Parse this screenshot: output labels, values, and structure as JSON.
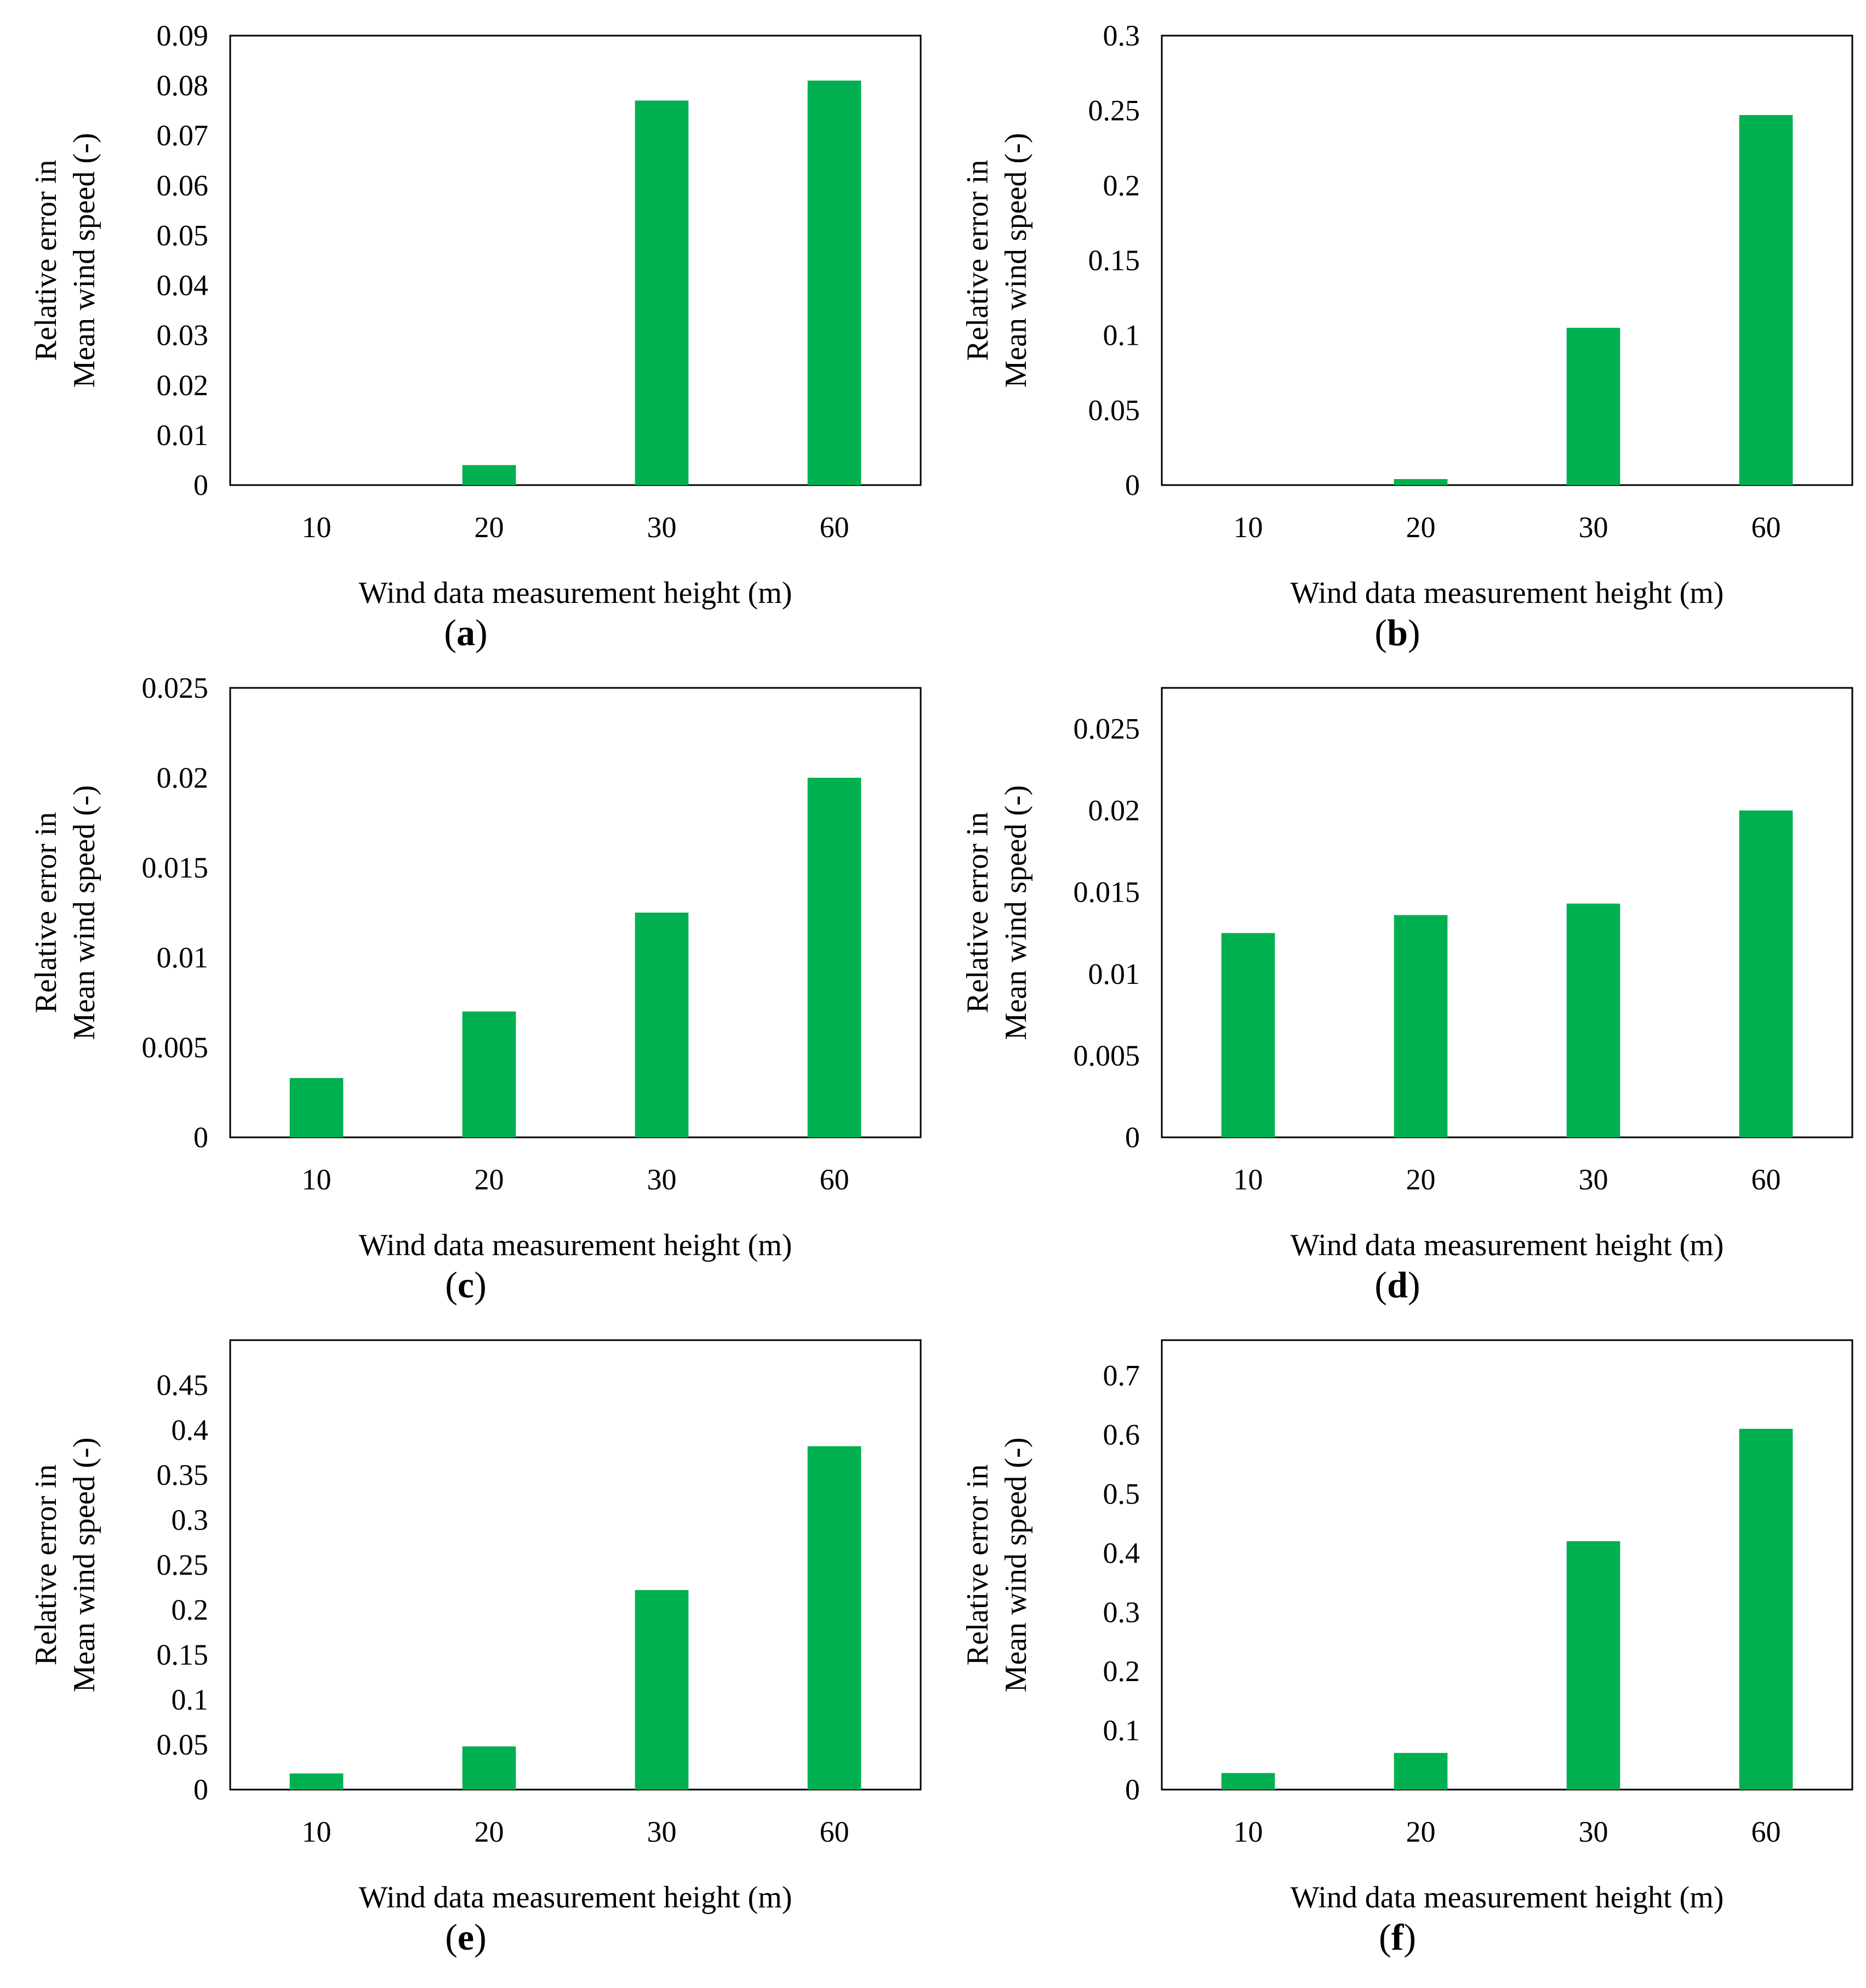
{
  "bar_color": "#00b050",
  "chart_data": [
    {
      "panel": "a",
      "type": "bar",
      "categories": [
        "10",
        "20",
        "30",
        "60"
      ],
      "values": [
        0,
        0.004,
        0.077,
        0.081
      ],
      "xlabel": "Wind data measurement height (m)",
      "ylabel_lines": [
        "Relative error in",
        "Mean wind speed (-)"
      ],
      "ylim": [
        0,
        0.09
      ],
      "yticks": [
        "0",
        "0.01",
        "0.02",
        "0.03",
        "0.04",
        "0.05",
        "0.06",
        "0.07",
        "0.08",
        "0.09"
      ],
      "ytick_values": [
        0,
        0.01,
        0.02,
        0.03,
        0.04,
        0.05,
        0.06,
        0.07,
        0.08,
        0.09
      ],
      "grid": false
    },
    {
      "panel": "b",
      "type": "bar",
      "categories": [
        "10",
        "20",
        "30",
        "60"
      ],
      "values": [
        0,
        0.004,
        0.105,
        0.247
      ],
      "xlabel": "Wind data measurement height (m)",
      "ylabel_lines": [
        "Relative error in",
        "Mean wind speed (-)"
      ],
      "ylim": [
        0,
        0.3
      ],
      "yticks": [
        "0",
        "0.05",
        "0.1",
        "0.15",
        "0.2",
        "0.25",
        "0.3"
      ],
      "ytick_values": [
        0,
        0.05,
        0.1,
        0.15,
        0.2,
        0.25,
        0.3
      ],
      "grid": false
    },
    {
      "panel": "c",
      "type": "bar",
      "categories": [
        "10",
        "20",
        "30",
        "60"
      ],
      "values": [
        0.0033,
        0.007,
        0.0125,
        0.02
      ],
      "xlabel": "Wind data measurement height (m)",
      "ylabel_lines": [
        "Relative error in",
        "Mean wind speed (-)"
      ],
      "ylim": [
        0,
        0.025
      ],
      "yticks": [
        "0",
        "0.005",
        "0.01",
        "0.015",
        "0.02",
        "0.025"
      ],
      "ytick_values": [
        0,
        0.005,
        0.01,
        0.015,
        0.02,
        0.025
      ],
      "grid": false
    },
    {
      "panel": "d",
      "type": "bar",
      "categories": [
        "10",
        "20",
        "30",
        "60"
      ],
      "values": [
        0.0125,
        0.0136,
        0.0143,
        0.02
      ],
      "xlabel": "Wind data measurement height (m)",
      "ylabel_lines": [
        "Relative error in",
        "Mean wind speed (-)"
      ],
      "ylim": [
        0,
        0.0275
      ],
      "yticks": [
        "0",
        "0.005",
        "0.01",
        "0.015",
        "0.02",
        "0.025"
      ],
      "ytick_values": [
        0,
        0.005,
        0.01,
        0.015,
        0.02,
        0.025
      ],
      "grid": false
    },
    {
      "panel": "e",
      "type": "bar",
      "categories": [
        "10",
        "20",
        "30",
        "60"
      ],
      "values": [
        0.018,
        0.048,
        0.222,
        0.382
      ],
      "xlabel": "Wind data measurement height (m)",
      "ylabel_lines": [
        "Relative error in",
        "Mean wind speed (-)"
      ],
      "ylim": [
        0,
        0.5
      ],
      "yticks": [
        "0",
        "0.05",
        "0.1",
        "0.15",
        "0.2",
        "0.25",
        "0.3",
        "0.35",
        "0.4",
        "0.45"
      ],
      "ytick_values": [
        0,
        0.05,
        0.1,
        0.15,
        0.2,
        0.25,
        0.3,
        0.35,
        0.4,
        0.45
      ],
      "grid": false
    },
    {
      "panel": "f",
      "type": "bar",
      "categories": [
        "10",
        "20",
        "30",
        "60"
      ],
      "values": [
        0.028,
        0.062,
        0.42,
        0.61
      ],
      "xlabel": "Wind data measurement height (m)",
      "ylabel_lines": [
        "Relative error in",
        "Mean wind speed (-)"
      ],
      "ylim": [
        0,
        0.76
      ],
      "yticks": [
        "0",
        "0.1",
        "0.2",
        "0.3",
        "0.4",
        "0.5",
        "0.6",
        "0.7"
      ],
      "ytick_values": [
        0,
        0.1,
        0.2,
        0.3,
        0.4,
        0.5,
        0.6,
        0.7
      ],
      "grid": false
    }
  ],
  "panel_labels": [
    {
      "open": "(",
      "letter": "a",
      "close": ")"
    },
    {
      "open": "(",
      "letter": "b",
      "close": ")"
    },
    {
      "open": "(",
      "letter": "c",
      "close": ")"
    },
    {
      "open": "(",
      "letter": "d",
      "close": ")"
    },
    {
      "open": "(",
      "letter": "e",
      "close": ")"
    },
    {
      "open": "(",
      "letter": "f",
      "close": ")"
    }
  ]
}
